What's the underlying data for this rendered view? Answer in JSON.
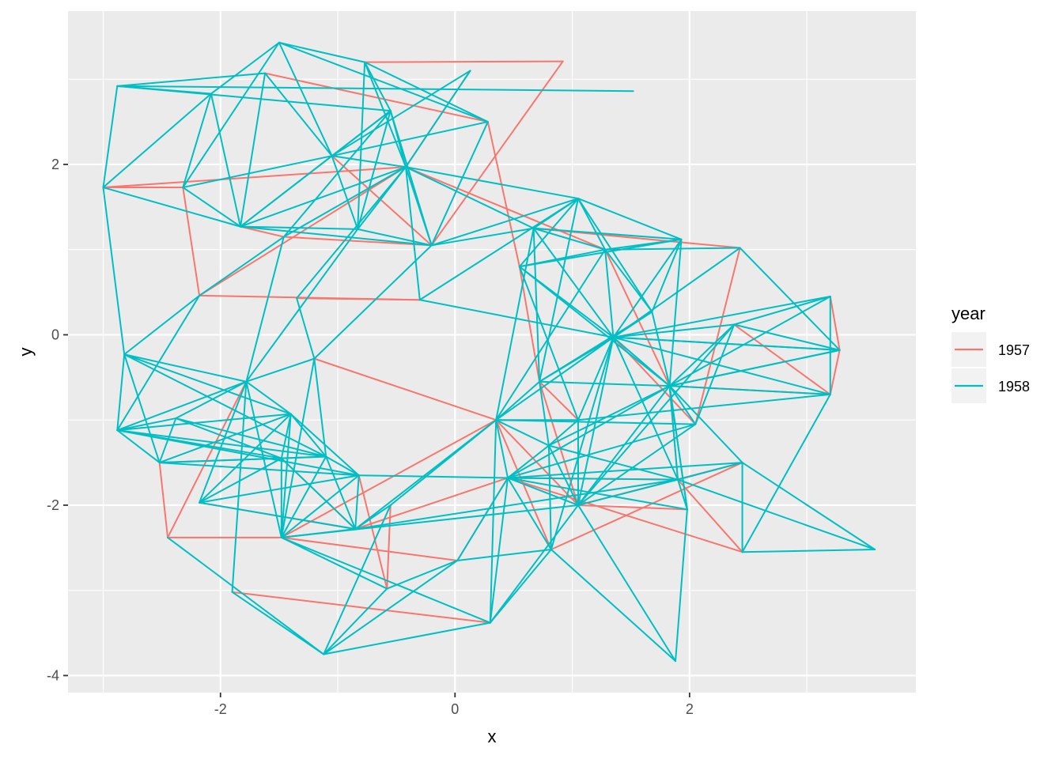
{
  "chart_data": {
    "type": "line",
    "subtype": "network-edges",
    "xlabel": "x",
    "ylabel": "y",
    "xlim": [
      -3.3,
      3.93
    ],
    "ylim": [
      -4.2,
      3.8
    ],
    "x_ticks": [
      -2,
      0,
      2
    ],
    "y_ticks": [
      -4,
      -2,
      0,
      2
    ],
    "x_tick_labels": [
      "-2",
      "0",
      "2"
    ],
    "y_tick_labels": [
      "-4",
      "-2",
      "0",
      "2"
    ],
    "grid": true,
    "legend": {
      "title": "year",
      "placement": "right",
      "entries": [
        "1957",
        "1958"
      ]
    },
    "colors": {
      "1957": "#F8766D",
      "1958": "#00BFC4"
    },
    "nodes": [
      {
        "id": "A1",
        "x": -3.0,
        "y": 1.73
      },
      {
        "id": "A2",
        "x": -2.88,
        "y": 2.92
      },
      {
        "id": "A3",
        "x": -2.32,
        "y": 1.73
      },
      {
        "id": "A4",
        "x": -2.08,
        "y": 2.83
      },
      {
        "id": "A5",
        "x": -1.62,
        "y": 3.07
      },
      {
        "id": "A6",
        "x": -1.5,
        "y": 3.43
      },
      {
        "id": "A7",
        "x": -1.83,
        "y": 1.27
      },
      {
        "id": "A8",
        "x": -1.46,
        "y": 1.15
      },
      {
        "id": "A9",
        "x": -1.05,
        "y": 2.1
      },
      {
        "id": "A10",
        "x": -0.77,
        "y": 3.2
      },
      {
        "id": "A11",
        "x": -0.83,
        "y": 1.24
      },
      {
        "id": "A12",
        "x": -0.55,
        "y": 2.63
      },
      {
        "id": "A13",
        "x": -0.42,
        "y": 1.97
      },
      {
        "id": "A14",
        "x": -0.2,
        "y": 1.05
      },
      {
        "id": "A15",
        "x": 0.13,
        "y": 3.1
      },
      {
        "id": "A16",
        "x": 0.28,
        "y": 2.5
      },
      {
        "id": "A17",
        "x": 0.92,
        "y": 3.21
      },
      {
        "id": "A18",
        "x": 1.52,
        "y": 2.86
      },
      {
        "id": "A19",
        "x": -0.3,
        "y": 0.41
      },
      {
        "id": "A20",
        "x": -1.35,
        "y": 0.43
      },
      {
        "id": "A21",
        "x": -2.18,
        "y": 0.46
      },
      {
        "id": "B1",
        "x": 1.05,
        "y": 1.6
      },
      {
        "id": "B2",
        "x": 0.67,
        "y": 1.25
      },
      {
        "id": "B3",
        "x": 0.55,
        "y": 0.8
      },
      {
        "id": "B4",
        "x": 1.28,
        "y": 1.0
      },
      {
        "id": "B5",
        "x": 1.93,
        "y": 1.12
      },
      {
        "id": "B6",
        "x": 2.43,
        "y": 1.02
      },
      {
        "id": "B7",
        "x": 1.68,
        "y": 0.27
      },
      {
        "id": "B8",
        "x": 1.35,
        "y": -0.03
      },
      {
        "id": "B9",
        "x": 0.72,
        "y": -0.55
      },
      {
        "id": "B10",
        "x": 1.83,
        "y": -0.6
      },
      {
        "id": "B11",
        "x": 2.38,
        "y": 0.12
      },
      {
        "id": "B12",
        "x": 3.2,
        "y": 0.45
      },
      {
        "id": "B13",
        "x": 3.28,
        "y": -0.18
      },
      {
        "id": "B14",
        "x": 3.2,
        "y": -0.7
      },
      {
        "id": "B15",
        "x": 2.05,
        "y": -1.05
      },
      {
        "id": "B16",
        "x": 1.05,
        "y": -1.0
      },
      {
        "id": "B17",
        "x": 0.35,
        "y": -1.0
      },
      {
        "id": "C1",
        "x": -2.82,
        "y": -0.23
      },
      {
        "id": "C2",
        "x": -2.88,
        "y": -1.12
      },
      {
        "id": "C3",
        "x": -2.38,
        "y": -0.98
      },
      {
        "id": "C4",
        "x": -2.52,
        "y": -1.5
      },
      {
        "id": "C5",
        "x": -1.78,
        "y": -0.55
      },
      {
        "id": "C6",
        "x": -1.4,
        "y": -0.93
      },
      {
        "id": "C7",
        "x": -1.48,
        "y": -1.45
      },
      {
        "id": "C8",
        "x": -1.2,
        "y": -0.28
      },
      {
        "id": "C9",
        "x": -1.1,
        "y": -1.43
      },
      {
        "id": "C10",
        "x": -0.82,
        "y": -1.65
      },
      {
        "id": "C11",
        "x": -2.18,
        "y": -1.97
      },
      {
        "id": "C12",
        "x": -2.45,
        "y": -2.38
      },
      {
        "id": "C13",
        "x": -1.48,
        "y": -2.38
      },
      {
        "id": "C14",
        "x": -0.85,
        "y": -2.28
      },
      {
        "id": "C15",
        "x": -0.55,
        "y": -2.0
      },
      {
        "id": "C16",
        "x": -1.9,
        "y": -3.02
      },
      {
        "id": "C17",
        "x": -0.58,
        "y": -2.98
      },
      {
        "id": "C18",
        "x": -1.12,
        "y": -3.75
      },
      {
        "id": "C19",
        "x": 0.02,
        "y": -2.65
      },
      {
        "id": "C20",
        "x": 0.3,
        "y": -3.38
      },
      {
        "id": "D1",
        "x": 0.45,
        "y": -1.68
      },
      {
        "id": "D2",
        "x": 0.8,
        "y": -1.3
      },
      {
        "id": "D3",
        "x": 1.05,
        "y": -2.0
      },
      {
        "id": "D4",
        "x": 0.82,
        "y": -2.52
      },
      {
        "id": "D5",
        "x": 1.9,
        "y": -1.7
      },
      {
        "id": "D6",
        "x": 1.98,
        "y": -2.05
      },
      {
        "id": "D7",
        "x": 2.45,
        "y": -1.5
      },
      {
        "id": "D8",
        "x": 2.45,
        "y": -2.55
      },
      {
        "id": "D9",
        "x": 3.58,
        "y": -2.52
      },
      {
        "id": "D10",
        "x": 1.88,
        "y": -3.83
      }
    ],
    "edges": {
      "1957": [
        [
          "A1",
          "A3"
        ],
        [
          "A1",
          "A13"
        ],
        [
          "A5",
          "A16"
        ],
        [
          "A3",
          "A21"
        ],
        [
          "A21",
          "A19"
        ],
        [
          "A21",
          "A13"
        ],
        [
          "A7",
          "A8"
        ],
        [
          "A8",
          "A14"
        ],
        [
          "A9",
          "A14"
        ],
        [
          "A13",
          "A15"
        ],
        [
          "A14",
          "A17"
        ],
        [
          "A10",
          "A17"
        ],
        [
          "A16",
          "B3"
        ],
        [
          "A13",
          "B4"
        ],
        [
          "B3",
          "B9"
        ],
        [
          "B4",
          "B10"
        ],
        [
          "B6",
          "B15"
        ],
        [
          "B6",
          "B2"
        ],
        [
          "B11",
          "B14"
        ],
        [
          "B12",
          "B13"
        ],
        [
          "B13",
          "B14"
        ],
        [
          "A20",
          "A19"
        ],
        [
          "B10",
          "B14"
        ],
        [
          "C5",
          "C12"
        ],
        [
          "C8",
          "B17"
        ],
        [
          "C4",
          "C12"
        ],
        [
          "C12",
          "C13"
        ],
        [
          "C7",
          "C14"
        ],
        [
          "C10",
          "C17"
        ],
        [
          "C16",
          "C20"
        ],
        [
          "C13",
          "B17"
        ],
        [
          "C15",
          "C17"
        ],
        [
          "D1",
          "C19"
        ],
        [
          "B17",
          "D4"
        ],
        [
          "D1",
          "D5"
        ],
        [
          "D3",
          "D7"
        ],
        [
          "D3",
          "D6"
        ],
        [
          "B9",
          "D3"
        ],
        [
          "D4",
          "D7"
        ],
        [
          "D5",
          "D8"
        ],
        [
          "B17",
          "D3"
        ],
        [
          "C19",
          "C13"
        ],
        [
          "C14",
          "D1"
        ],
        [
          "D1",
          "D8"
        ],
        [
          "B9",
          "B16"
        ],
        [
          "B10",
          "D5"
        ],
        [
          "B8",
          "B15"
        ],
        [
          "C11",
          "C14"
        ]
      ],
      "1958": [
        [
          "A1",
          "A2"
        ],
        [
          "A2",
          "A4"
        ],
        [
          "A2",
          "A5"
        ],
        [
          "A2",
          "A12"
        ],
        [
          "A2",
          "A18"
        ],
        [
          "A1",
          "A4"
        ],
        [
          "A1",
          "A7"
        ],
        [
          "A3",
          "A4"
        ],
        [
          "A3",
          "A6"
        ],
        [
          "A3",
          "A9"
        ],
        [
          "A3",
          "A7"
        ],
        [
          "A4",
          "A6"
        ],
        [
          "A4",
          "A7"
        ],
        [
          "A5",
          "A9"
        ],
        [
          "A5",
          "A7"
        ],
        [
          "A6",
          "A9"
        ],
        [
          "A6",
          "A10"
        ],
        [
          "A6",
          "A16"
        ],
        [
          "A7",
          "A9"
        ],
        [
          "A7",
          "A11"
        ],
        [
          "A7",
          "A12"
        ],
        [
          "A7",
          "A13"
        ],
        [
          "A7",
          "A14"
        ],
        [
          "A8",
          "A12"
        ],
        [
          "A8",
          "A13"
        ],
        [
          "A9",
          "A11"
        ],
        [
          "A9",
          "A12"
        ],
        [
          "A9",
          "A13"
        ],
        [
          "A9",
          "A16"
        ],
        [
          "A9",
          "A15"
        ],
        [
          "A10",
          "A11"
        ],
        [
          "A10",
          "A12"
        ],
        [
          "A10",
          "A13"
        ],
        [
          "A10",
          "A16"
        ],
        [
          "A11",
          "A13"
        ],
        [
          "A11",
          "A14"
        ],
        [
          "A11",
          "A12"
        ],
        [
          "A12",
          "A13"
        ],
        [
          "A12",
          "A14"
        ],
        [
          "A13",
          "A14"
        ],
        [
          "A13",
          "A19"
        ],
        [
          "A13",
          "B1"
        ],
        [
          "A13",
          "B2"
        ],
        [
          "A14",
          "A16"
        ],
        [
          "A14",
          "B1"
        ],
        [
          "A14",
          "B2"
        ],
        [
          "A15",
          "A13"
        ],
        [
          "A20",
          "A13"
        ],
        [
          "A20",
          "C8"
        ],
        [
          "A19",
          "B8"
        ],
        [
          "A19",
          "B1"
        ],
        [
          "A21",
          "C1"
        ],
        [
          "A21",
          "C2"
        ],
        [
          "A21",
          "A8"
        ],
        [
          "A1",
          "C1"
        ],
        [
          "A8",
          "C5"
        ],
        [
          "A11",
          "C5"
        ],
        [
          "A14",
          "C8"
        ],
        [
          "B1",
          "B2"
        ],
        [
          "B1",
          "B3"
        ],
        [
          "B1",
          "B4"
        ],
        [
          "B1",
          "B5"
        ],
        [
          "B1",
          "B7"
        ],
        [
          "B1",
          "B9"
        ],
        [
          "B2",
          "B4"
        ],
        [
          "B2",
          "B5"
        ],
        [
          "B2",
          "B8"
        ],
        [
          "B2",
          "B9"
        ],
        [
          "B3",
          "B4"
        ],
        [
          "B3",
          "B5"
        ],
        [
          "B3",
          "B8"
        ],
        [
          "B3",
          "B10"
        ],
        [
          "B3",
          "B16"
        ],
        [
          "B4",
          "B5"
        ],
        [
          "B4",
          "B7"
        ],
        [
          "B4",
          "B8"
        ],
        [
          "B4",
          "B6"
        ],
        [
          "B5",
          "B7"
        ],
        [
          "B5",
          "B8"
        ],
        [
          "B5",
          "B10"
        ],
        [
          "B6",
          "B8"
        ],
        [
          "B6",
          "B13"
        ],
        [
          "B7",
          "B8"
        ],
        [
          "B7",
          "B10"
        ],
        [
          "B7",
          "B9"
        ],
        [
          "B8",
          "B10"
        ],
        [
          "B8",
          "B11"
        ],
        [
          "B8",
          "B12"
        ],
        [
          "B8",
          "B13"
        ],
        [
          "B8",
          "B14"
        ],
        [
          "B8",
          "B16"
        ],
        [
          "B8",
          "B17"
        ],
        [
          "B8",
          "D3"
        ],
        [
          "B8",
          "D5"
        ],
        [
          "B9",
          "B8"
        ],
        [
          "B9",
          "B10"
        ],
        [
          "B9",
          "B17"
        ],
        [
          "B10",
          "B11"
        ],
        [
          "B10",
          "B12"
        ],
        [
          "B10",
          "B13"
        ],
        [
          "B10",
          "B15"
        ],
        [
          "B10",
          "D3"
        ],
        [
          "B10",
          "D6"
        ],
        [
          "B10",
          "D1"
        ],
        [
          "B11",
          "B12"
        ],
        [
          "B11",
          "B13"
        ],
        [
          "B11",
          "B15"
        ],
        [
          "B11",
          "D3"
        ],
        [
          "B12",
          "B14"
        ],
        [
          "B13",
          "B10"
        ],
        [
          "B13",
          "B8"
        ],
        [
          "B14",
          "B10"
        ],
        [
          "B14",
          "B16"
        ],
        [
          "B15",
          "B17"
        ],
        [
          "B16",
          "B17"
        ],
        [
          "B16",
          "D3"
        ],
        [
          "B16",
          "D2"
        ],
        [
          "B17",
          "D2"
        ],
        [
          "B17",
          "D1"
        ],
        [
          "B17",
          "B2"
        ],
        [
          "B17",
          "B4"
        ],
        [
          "B17",
          "C20"
        ],
        [
          "C1",
          "C2"
        ],
        [
          "C1",
          "C5"
        ],
        [
          "C1",
          "C4"
        ],
        [
          "C1",
          "C6"
        ],
        [
          "C1",
          "C9"
        ],
        [
          "C2",
          "C3"
        ],
        [
          "C2",
          "C5"
        ],
        [
          "C2",
          "C6"
        ],
        [
          "C2",
          "C7"
        ],
        [
          "C2",
          "C9"
        ],
        [
          "C2",
          "C10"
        ],
        [
          "C2",
          "C4"
        ],
        [
          "C3",
          "C4"
        ],
        [
          "C3",
          "C5"
        ],
        [
          "C3",
          "C7"
        ],
        [
          "C3",
          "C9"
        ],
        [
          "C4",
          "C6"
        ],
        [
          "C4",
          "C7"
        ],
        [
          "C4",
          "C10"
        ],
        [
          "C4",
          "C9"
        ],
        [
          "C5",
          "C6"
        ],
        [
          "C5",
          "C8"
        ],
        [
          "C5",
          "C11"
        ],
        [
          "C5",
          "C13"
        ],
        [
          "C5",
          "C16"
        ],
        [
          "C6",
          "C7"
        ],
        [
          "C6",
          "C9"
        ],
        [
          "C6",
          "C10"
        ],
        [
          "C6",
          "C13"
        ],
        [
          "C6",
          "C11"
        ],
        [
          "C7",
          "C9"
        ],
        [
          "C7",
          "C11"
        ],
        [
          "C7",
          "C13"
        ],
        [
          "C7",
          "C14"
        ],
        [
          "C8",
          "C9"
        ],
        [
          "C8",
          "C13"
        ],
        [
          "C9",
          "C10"
        ],
        [
          "C9",
          "C13"
        ],
        [
          "C9",
          "C14"
        ],
        [
          "C10",
          "C11"
        ],
        [
          "C10",
          "C13"
        ],
        [
          "C10",
          "C14"
        ],
        [
          "C10",
          "D1"
        ],
        [
          "C11",
          "C14"
        ],
        [
          "C12",
          "C18"
        ],
        [
          "C13",
          "C14"
        ],
        [
          "C13",
          "C17"
        ],
        [
          "C13",
          "C20"
        ],
        [
          "C14",
          "C15"
        ],
        [
          "C14",
          "B17"
        ],
        [
          "C15",
          "C18"
        ],
        [
          "C15",
          "B17"
        ],
        [
          "C16",
          "C18"
        ],
        [
          "C17",
          "C18"
        ],
        [
          "C17",
          "C19"
        ],
        [
          "C18",
          "C20"
        ],
        [
          "C18",
          "C19"
        ],
        [
          "C19",
          "D1"
        ],
        [
          "C20",
          "D1"
        ],
        [
          "C20",
          "D3"
        ],
        [
          "C20",
          "D4"
        ],
        [
          "D1",
          "D2"
        ],
        [
          "D1",
          "D3"
        ],
        [
          "D1",
          "D4"
        ],
        [
          "D1",
          "D5"
        ],
        [
          "D1",
          "D6"
        ],
        [
          "D1",
          "D7"
        ],
        [
          "D2",
          "D3"
        ],
        [
          "D2",
          "D4"
        ],
        [
          "D2",
          "D5"
        ],
        [
          "D3",
          "D5"
        ],
        [
          "D3",
          "D10"
        ],
        [
          "D3",
          "B15"
        ],
        [
          "D4",
          "D10"
        ],
        [
          "D5",
          "D6"
        ],
        [
          "D5",
          "D7"
        ],
        [
          "D5",
          "D9"
        ],
        [
          "D5",
          "B10"
        ],
        [
          "D7",
          "D8"
        ],
        [
          "D7",
          "D9"
        ],
        [
          "D7",
          "B10"
        ],
        [
          "D8",
          "D9"
        ],
        [
          "D8",
          "B14"
        ],
        [
          "D6",
          "D10"
        ],
        [
          "D6",
          "B10"
        ],
        [
          "D2",
          "B9"
        ],
        [
          "D4",
          "B8"
        ],
        [
          "D2",
          "B10"
        ],
        [
          "C19",
          "D4"
        ],
        [
          "C14",
          "D5"
        ],
        [
          "C13",
          "D3"
        ],
        [
          "D1",
          "B15"
        ]
      ]
    }
  }
}
